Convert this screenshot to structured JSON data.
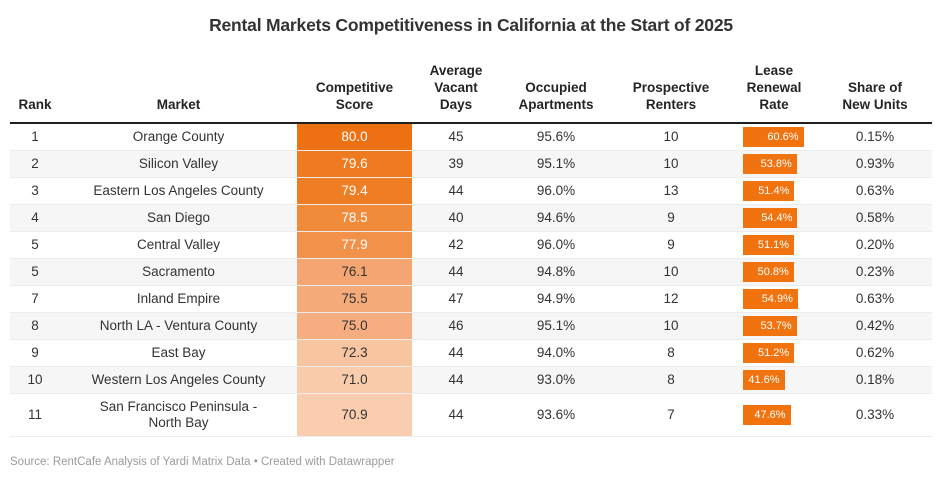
{
  "chart_data": {
    "type": "table",
    "title": "Rental Markets Competitiveness in California at the Start of 2025",
    "source": "Source: RentCafe Analysis of Yardi Matrix Data • Created with Datawrapper",
    "legend_position": "none",
    "grid": "row-separators",
    "columns": [
      {
        "key": "rank",
        "label": "Rank"
      },
      {
        "key": "market",
        "label": "Market"
      },
      {
        "key": "score",
        "label": "Competitive\nScore"
      },
      {
        "key": "vacant_days",
        "label": "Average\nVacant\nDays"
      },
      {
        "key": "occupied",
        "label": "Occupied\nApartments"
      },
      {
        "key": "renters",
        "label": "Prospective\nRenters"
      },
      {
        "key": "renewal",
        "label": "Lease\nRenewal\nRate"
      },
      {
        "key": "new_units",
        "label": "Share of\nNew Units"
      }
    ],
    "rows": [
      {
        "rank": "1",
        "market": "Orange County",
        "score": "80.0",
        "score_bg": "#ED7112",
        "score_text": "#FFFFFF",
        "vacant_days": "45",
        "occupied": "95.6%",
        "renters": "10",
        "renewal": "60.6%",
        "renewal_value": 60.6,
        "new_units": "0.15%"
      },
      {
        "rank": "2",
        "market": "Silicon Valley",
        "score": "79.6",
        "score_bg": "#EF7A1F",
        "score_text": "#FFFFFF",
        "vacant_days": "39",
        "occupied": "95.1%",
        "renters": "10",
        "renewal": "53.8%",
        "renewal_value": 53.8,
        "new_units": "0.93%"
      },
      {
        "rank": "3",
        "market": "Eastern Los Angeles County",
        "score": "79.4",
        "score_bg": "#EF7D23",
        "score_text": "#FFFFFF",
        "vacant_days": "44",
        "occupied": "96.0%",
        "renters": "13",
        "renewal": "51.4%",
        "renewal_value": 51.4,
        "new_units": "0.63%"
      },
      {
        "rank": "4",
        "market": "San Diego",
        "score": "78.5",
        "score_bg": "#F18B3C",
        "score_text": "#FFFFFF",
        "vacant_days": "40",
        "occupied": "94.6%",
        "renters": "9",
        "renewal": "54.4%",
        "renewal_value": 54.4,
        "new_units": "0.58%"
      },
      {
        "rank": "5",
        "market": "Central Valley",
        "score": "77.9",
        "score_bg": "#F2924A",
        "score_text": "#FFFFFF",
        "vacant_days": "42",
        "occupied": "96.0%",
        "renters": "9",
        "renewal": "51.1%",
        "renewal_value": 51.1,
        "new_units": "0.20%"
      },
      {
        "rank": "5",
        "market": "Sacramento",
        "score": "76.1",
        "score_bg": "#F5A571",
        "score_text": "#333333",
        "vacant_days": "44",
        "occupied": "94.8%",
        "renters": "10",
        "renewal": "50.8%",
        "renewal_value": 50.8,
        "new_units": "0.23%"
      },
      {
        "rank": "7",
        "market": "Inland Empire",
        "score": "75.5",
        "score_bg": "#F5AA7A",
        "score_text": "#333333",
        "vacant_days": "47",
        "occupied": "94.9%",
        "renters": "12",
        "renewal": "54.9%",
        "renewal_value": 54.9,
        "new_units": "0.63%"
      },
      {
        "rank": "8",
        "market": "North LA - Ventura County",
        "score": "75.0",
        "score_bg": "#F6AE81",
        "score_text": "#333333",
        "vacant_days": "46",
        "occupied": "95.1%",
        "renters": "10",
        "renewal": "53.7%",
        "renewal_value": 53.7,
        "new_units": "0.42%"
      },
      {
        "rank": "9",
        "market": "East Bay",
        "score": "72.3",
        "score_bg": "#F8C5A1",
        "score_text": "#333333",
        "vacant_days": "44",
        "occupied": "94.0%",
        "renters": "8",
        "renewal": "51.2%",
        "renewal_value": 51.2,
        "new_units": "0.62%"
      },
      {
        "rank": "10",
        "market": "Western Los Angeles County",
        "score": "71.0",
        "score_bg": "#F9CCAB",
        "score_text": "#333333",
        "vacant_days": "44",
        "occupied": "93.0%",
        "renters": "8",
        "renewal": "41.6%",
        "renewal_value": 41.6,
        "new_units": "0.18%"
      },
      {
        "rank": "11",
        "market": "San Francisco Peninsula -\nNorth Bay",
        "score": "70.9",
        "score_bg": "#F9CDAE",
        "score_text": "#333333",
        "vacant_days": "44",
        "occupied": "93.6%",
        "renters": "7",
        "renewal": "47.6%",
        "renewal_value": 47.6,
        "new_units": "0.33%"
      }
    ],
    "colors": {
      "accent": "#ED7112",
      "bar": "#F0730F",
      "header_rule": "#1F1F1F",
      "zebra_stripe": "#F6F6F6",
      "body_text": "#333333",
      "muted_text": "#9B9B9B"
    }
  }
}
